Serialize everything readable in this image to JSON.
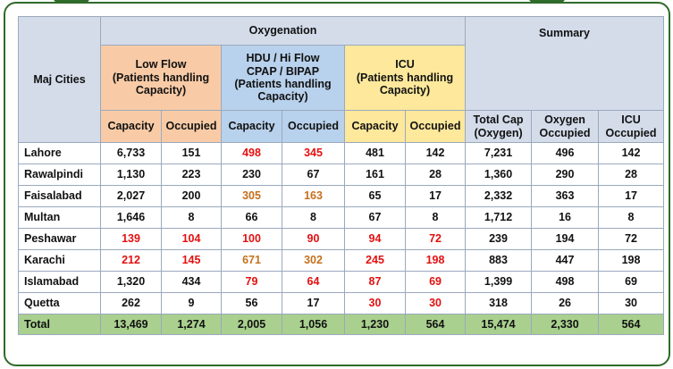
{
  "header": {
    "city_col": "Maj Cities",
    "oxygenation": "Oxygenation",
    "summary": "Summary",
    "low_flow": [
      "Low Flow",
      "(Patients handling",
      "Capacity)"
    ],
    "hdu": [
      "HDU / Hi Flow",
      "CPAP / BIPAP",
      "(Patients handling",
      "Capacity)"
    ],
    "icu": [
      "ICU",
      "(Patients handling",
      "Capacity)"
    ],
    "capacity": "Capacity",
    "occupied": "Occupied",
    "total_cap": [
      "Total Cap",
      "(Oxygen)"
    ],
    "oxygen_occupied": [
      "Oxygen",
      "Occupied"
    ],
    "icu_occupied": [
      "ICU",
      "Occupied"
    ]
  },
  "colors": {
    "low_flow_bg": "#f8cba6",
    "hdu_bg": "#b8d1ec",
    "icu_bg": "#fde89b",
    "header_bg": "#d4dcea",
    "total_bg": "#a9d08e",
    "alert_red": "#e41010",
    "warn_orange": "#c5701d",
    "frame_green": "#2f6b2a"
  },
  "rows": [
    {
      "city": "Lahore",
      "cells": [
        {
          "v": "6,733"
        },
        {
          "v": "151"
        },
        {
          "v": "498",
          "s": "red"
        },
        {
          "v": "345",
          "s": "red"
        },
        {
          "v": "481"
        },
        {
          "v": "142"
        },
        {
          "v": "7,231"
        },
        {
          "v": "496"
        },
        {
          "v": "142"
        }
      ]
    },
    {
      "city": "Rawalpindi",
      "cells": [
        {
          "v": "1,130"
        },
        {
          "v": "223"
        },
        {
          "v": "230"
        },
        {
          "v": "67"
        },
        {
          "v": "161"
        },
        {
          "v": "28"
        },
        {
          "v": "1,360"
        },
        {
          "v": "290"
        },
        {
          "v": "28"
        }
      ]
    },
    {
      "city": "Faisalabad",
      "cells": [
        {
          "v": "2,027"
        },
        {
          "v": "200"
        },
        {
          "v": "305",
          "s": "orange"
        },
        {
          "v": "163",
          "s": "orange"
        },
        {
          "v": "65"
        },
        {
          "v": "17"
        },
        {
          "v": "2,332"
        },
        {
          "v": "363"
        },
        {
          "v": "17"
        }
      ]
    },
    {
      "city": "Multan",
      "cells": [
        {
          "v": "1,646"
        },
        {
          "v": "8"
        },
        {
          "v": "66"
        },
        {
          "v": "8"
        },
        {
          "v": "67"
        },
        {
          "v": "8"
        },
        {
          "v": "1,712"
        },
        {
          "v": "16"
        },
        {
          "v": "8"
        }
      ]
    },
    {
      "city": "Peshawar",
      "cells": [
        {
          "v": "139",
          "s": "red"
        },
        {
          "v": "104",
          "s": "red"
        },
        {
          "v": "100",
          "s": "red"
        },
        {
          "v": "90",
          "s": "red"
        },
        {
          "v": "94",
          "s": "red"
        },
        {
          "v": "72",
          "s": "red"
        },
        {
          "v": "239"
        },
        {
          "v": "194"
        },
        {
          "v": "72"
        }
      ]
    },
    {
      "city": "Karachi",
      "cells": [
        {
          "v": "212",
          "s": "red"
        },
        {
          "v": "145",
          "s": "red"
        },
        {
          "v": "671",
          "s": "orange"
        },
        {
          "v": "302",
          "s": "orange"
        },
        {
          "v": "245",
          "s": "red"
        },
        {
          "v": "198",
          "s": "red"
        },
        {
          "v": "883"
        },
        {
          "v": "447"
        },
        {
          "v": "198"
        }
      ]
    },
    {
      "city": "Islamabad",
      "cells": [
        {
          "v": "1,320"
        },
        {
          "v": "434"
        },
        {
          "v": "79",
          "s": "red"
        },
        {
          "v": "64",
          "s": "red"
        },
        {
          "v": "87",
          "s": "red"
        },
        {
          "v": "69",
          "s": "red"
        },
        {
          "v": "1,399"
        },
        {
          "v": "498"
        },
        {
          "v": "69"
        }
      ]
    },
    {
      "city": "Quetta",
      "cells": [
        {
          "v": "262"
        },
        {
          "v": "9"
        },
        {
          "v": "56"
        },
        {
          "v": "17"
        },
        {
          "v": "30",
          "s": "red"
        },
        {
          "v": "30",
          "s": "red"
        },
        {
          "v": "318"
        },
        {
          "v": "26"
        },
        {
          "v": "30"
        }
      ]
    }
  ],
  "total": {
    "label": "Total",
    "cells": [
      "13,469",
      "1,274",
      "2,005",
      "1,056",
      "1,230",
      "564",
      "15,474",
      "2,330",
      "564"
    ]
  }
}
